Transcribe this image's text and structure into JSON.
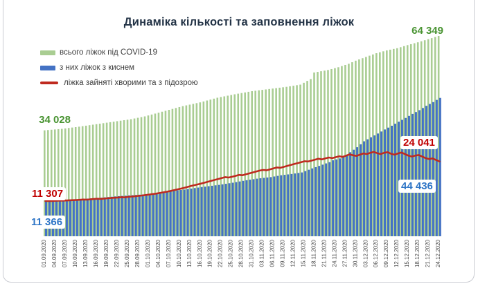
{
  "header": {
    "title": "Динаміка кількості та заповнення ліжок"
  },
  "legend": [
    {
      "label": "всього ліжок під COVID-19",
      "color": "#a9cd92",
      "swatch": "bar-swatch"
    },
    {
      "label": "з них ліжок з киснем",
      "color": "#4472c4",
      "swatch": "bar-swatch"
    },
    {
      "label": "ліжка зайняті хворими та з підозрою",
      "color": "#bf2a1f",
      "swatch": "line-swatch"
    }
  ],
  "annotations": {
    "total_start": "34 028",
    "total_end": "64 349",
    "occupied_start": "11 307",
    "occupied_end": "24 041",
    "oxygen_start": "11 366",
    "oxygen_end": "44 436"
  },
  "colors": {
    "total_bar": "#a9cd92",
    "oxygen_bar": "#4472c4",
    "occupied_line": "#bf2a1f",
    "total_text": "#489331",
    "oxygen_text": "#2e75c6",
    "occupied_text": "#c00000",
    "title_text": "#243447",
    "axis_text": "#4a4a4a"
  },
  "chart_data": {
    "type": "bar",
    "title": "Динаміка кількості та заповнення ліжок",
    "x_range": [
      "01.09.2020",
      "24.12.2020"
    ],
    "x_step_days": 1,
    "n_bars": 115,
    "tick_every_days": 3,
    "x_tick_labels": [
      "01.09.2020",
      "04.09.2020",
      "07.09.2020",
      "10.09.2020",
      "13.09.2020",
      "16.09.2020",
      "19.09.2020",
      "22.09.2020",
      "25.09.2020",
      "28.09.2020",
      "01.10.2020",
      "04.10.2020",
      "07.10.2020",
      "10.10.2020",
      "13.10.2020",
      "16.10.2020",
      "19.10.2020",
      "22.10.2020",
      "25.10.2020",
      "28.10.2020",
      "31.10.2020",
      "03.11.2020",
      "06.11.2020",
      "09.11.2020",
      "12.11.2020",
      "15.11.2020",
      "18.11.2020",
      "21.11.2020",
      "24.11.2020",
      "27.11.2020",
      "30.11.2020",
      "03.12.2020",
      "06.12.2020",
      "09.12.2020",
      "12.12.2020",
      "15.12.2020",
      "18.12.2020",
      "21.12.2020",
      "24.12.2020"
    ],
    "ylim": [
      0,
      66000
    ],
    "grid": false,
    "legend_position": "top-left",
    "series": [
      {
        "name": "всього ліжок під COVID-19",
        "type": "bar",
        "color": "#a9cd92",
        "first_value": 34028,
        "last_value": 64349,
        "values": [
          34028,
          34120,
          34220,
          34310,
          34400,
          34500,
          34640,
          34780,
          34920,
          35060,
          35200,
          35360,
          35520,
          35680,
          35840,
          36000,
          36160,
          36320,
          36480,
          36640,
          36800,
          36960,
          37120,
          37280,
          37440,
          37600,
          37825,
          38050,
          38275,
          38500,
          38800,
          39100,
          39400,
          39700,
          40000,
          40300,
          40600,
          40900,
          41200,
          41500,
          41800,
          42040,
          42280,
          42520,
          42760,
          43000,
          43300,
          43600,
          43900,
          44200,
          44500,
          44720,
          44940,
          45160,
          45380,
          45600,
          45800,
          46000,
          46200,
          46400,
          46600,
          46740,
          46880,
          47020,
          47160,
          47300,
          47440,
          47580,
          47720,
          47860,
          48000,
          48175,
          48350,
          48525,
          48700,
          49300,
          49900,
          50500,
          52600,
          52800,
          53000,
          53200,
          53400,
          53700,
          54000,
          54300,
          54670,
          55030,
          55400,
          55900,
          56400,
          56800,
          57200,
          57600,
          58000,
          58400,
          58800,
          59100,
          59400,
          59700,
          59930,
          60170,
          60400,
          60730,
          61070,
          61400,
          61700,
          62000,
          62300,
          62630,
          62970,
          63300,
          63650,
          64000,
          64349
        ]
      },
      {
        "name": "з них ліжок з киснем",
        "type": "bar",
        "color": "#4472c4",
        "first_value": 11366,
        "last_value": 44436,
        "values": [
          11366,
          11390,
          11420,
          11450,
          11480,
          11500,
          11540,
          11580,
          11620,
          11660,
          11700,
          11900,
          12100,
          12170,
          12230,
          12300,
          12400,
          12500,
          12600,
          12700,
          12800,
          12880,
          12960,
          13040,
          13120,
          13200,
          13275,
          13350,
          13425,
          13500,
          13640,
          13780,
          13920,
          14060,
          14200,
          14330,
          14470,
          14600,
          14730,
          14870,
          15000,
          15160,
          15320,
          15480,
          15640,
          15800,
          15940,
          16080,
          16220,
          16360,
          16500,
          16675,
          16850,
          17025,
          17200,
          17400,
          17600,
          17800,
          18000,
          18170,
          18330,
          18500,
          18625,
          18750,
          18875,
          19000,
          19200,
          19400,
          19600,
          19730,
          19870,
          20000,
          20170,
          20330,
          20500,
          20930,
          21370,
          21800,
          22200,
          22600,
          23000,
          23400,
          23800,
          24400,
          24700,
          25000,
          25600,
          26200,
          27000,
          27800,
          28600,
          29550,
          30500,
          31150,
          31800,
          32400,
          33000,
          33650,
          34300,
          34900,
          35500,
          36150,
          36800,
          37400,
          38000,
          38650,
          39300,
          39900,
          40500,
          41200,
          41900,
          42500,
          43100,
          43800,
          44436
        ]
      },
      {
        "name": "ліжка зайняті хворими та з підозрою",
        "type": "line",
        "color": "#bf2a1f",
        "first_value": 11307,
        "last_value": 24041,
        "values": [
          11307,
          11350,
          11320,
          11400,
          11450,
          11420,
          11500,
          11570,
          11600,
          11650,
          11720,
          11800,
          11760,
          11850,
          11950,
          12050,
          12000,
          12100,
          12200,
          12300,
          12380,
          12450,
          12550,
          12500,
          12650,
          12750,
          12850,
          13000,
          13100,
          13250,
          13400,
          13550,
          13700,
          13900,
          14100,
          14300,
          14500,
          14750,
          15000,
          15250,
          15500,
          15800,
          16100,
          16400,
          16650,
          16900,
          17200,
          17500,
          17800,
          18100,
          18400,
          18700,
          19000,
          18850,
          19100,
          19400,
          19700,
          19600,
          19900,
          20200,
          20500,
          20800,
          21100,
          21300,
          21200,
          21500,
          21800,
          22100,
          22000,
          22300,
          22600,
          22900,
          23200,
          23500,
          23800,
          24100,
          24000,
          24300,
          24600,
          24900,
          24700,
          25000,
          25300,
          25100,
          25400,
          25700,
          25500,
          25900,
          26300,
          26000,
          25800,
          26200,
          26600,
          26400,
          26800,
          27100,
          26700,
          26400,
          26800,
          27000,
          26500,
          26200,
          26600,
          26900,
          26400,
          25900,
          25600,
          25900,
          26100,
          25600,
          25100,
          24800,
          25000,
          24500,
          24041
        ]
      }
    ]
  }
}
